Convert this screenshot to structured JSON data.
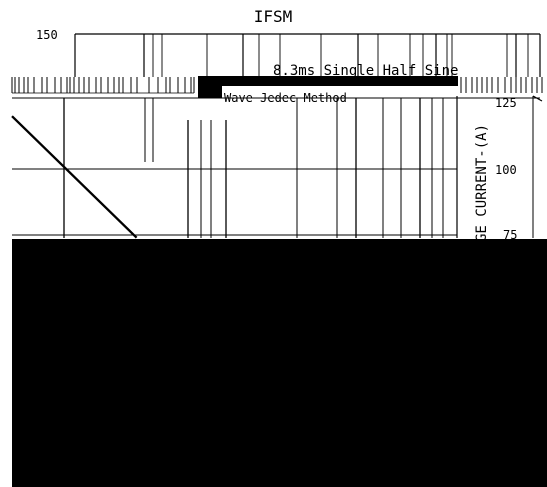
{
  "chart_data": {
    "type": "line",
    "title": "IFSM",
    "annotation": {
      "line1": "8.3ms Single Half Sine",
      "line2": "Wave Jedec Method"
    },
    "xlabel": "",
    "ylabel": "GE CURRENT-(A)",
    "y_ticks": [
      {
        "label": "150",
        "value": 150
      },
      {
        "label": "125",
        "value": 125
      },
      {
        "label": "100",
        "value": 100
      },
      {
        "label": "75",
        "value": 75
      }
    ],
    "ylim": [
      60,
      150
    ],
    "grid": true,
    "series": [
      {
        "values_note": "",
        "points": [
          {
            "x": 0.0,
            "y": 120
          },
          {
            "x": 0.28,
            "y": 74
          }
        ]
      }
    ]
  },
  "colors": {
    "line": "#000000",
    "background": "#ffffff",
    "mask": "#000000"
  }
}
